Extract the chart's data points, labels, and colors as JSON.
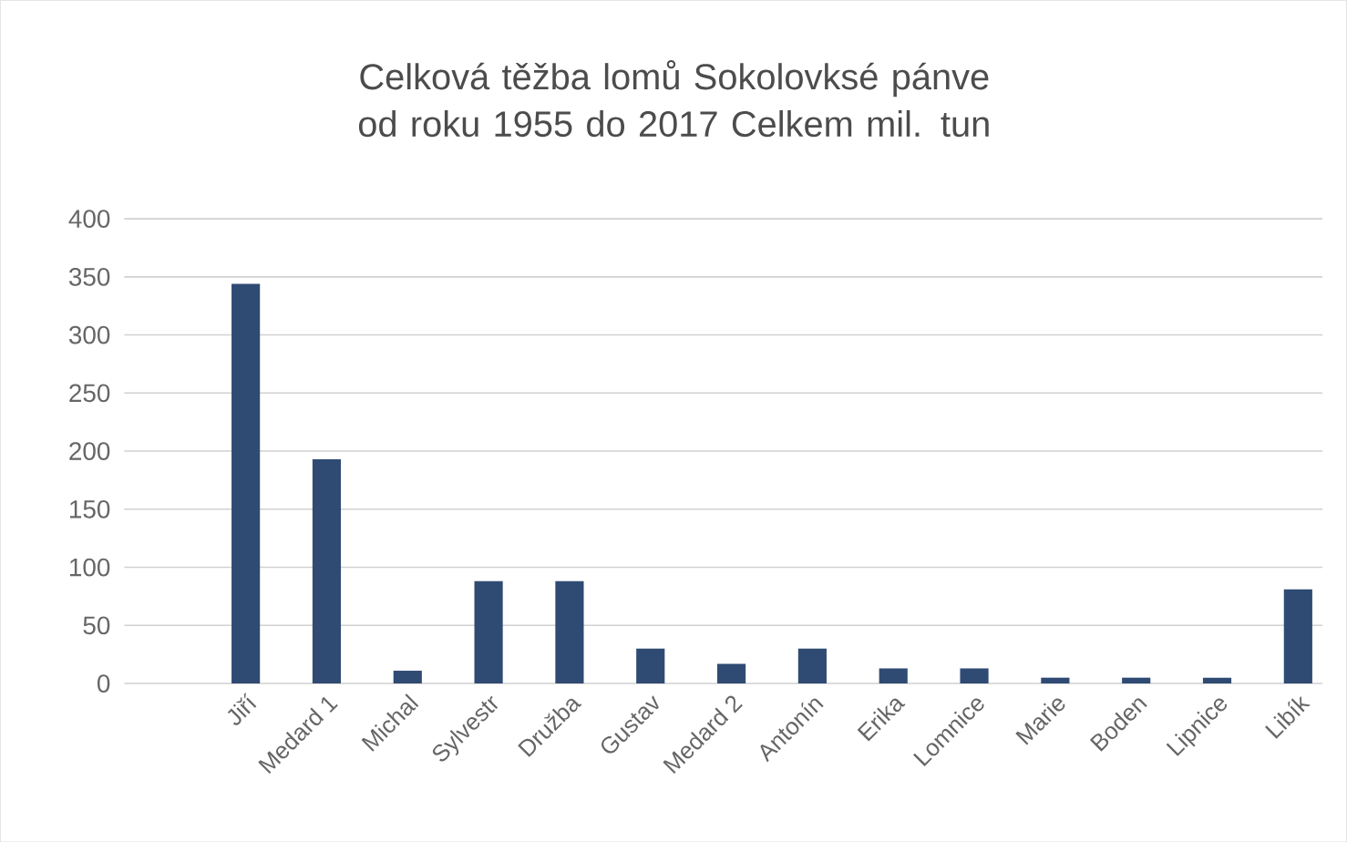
{
  "chart_data": {
    "type": "bar",
    "title": "Celková těžba lomů Sokolovksé pánve od roku 1955 do 2017 Celkem mil. tun",
    "categories": [
      "Jiří",
      "Medard 1",
      "Michal",
      "Sylvestr",
      "Družba",
      "Gustav",
      "Medard 2",
      "Antonín",
      "Erika",
      "Lomnice",
      "Marie",
      "Boden",
      "Lipnice",
      "Libík"
    ],
    "values": [
      344,
      193,
      11,
      88,
      88,
      30,
      17,
      30,
      13,
      13,
      5,
      5,
      5,
      81
    ],
    "color": "#2f4b73",
    "ylim": [
      0,
      400
    ],
    "yticks": [
      0,
      50,
      100,
      150,
      200,
      250,
      300,
      350,
      400
    ],
    "grid": "y"
  }
}
